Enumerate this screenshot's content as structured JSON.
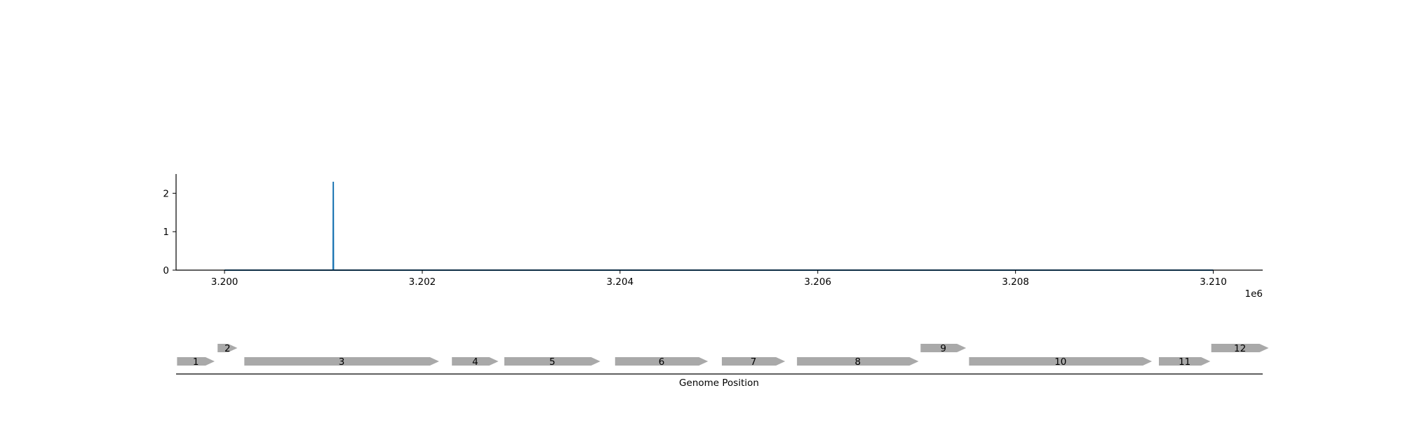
{
  "chart_data": [
    {
      "type": "line",
      "title": "",
      "xlabel": "",
      "ylabel": "",
      "x_offset_label": "1e6",
      "xlim": [
        3199510,
        3210500
      ],
      "ylim": [
        0,
        2.5
      ],
      "x_ticks": [
        3200000,
        3202000,
        3204000,
        3206000,
        3208000,
        3210000
      ],
      "x_tick_labels": [
        "3.200",
        "3.202",
        "3.204",
        "3.206",
        "3.208",
        "3.210"
      ],
      "y_ticks": [
        0,
        1,
        2
      ],
      "y_tick_labels": [
        "0",
        "1",
        "2"
      ],
      "grid": false,
      "legend": "none",
      "series_color": "#1f77b4",
      "series": [
        {
          "points": [
            [
              3200000,
              0
            ],
            [
              3201098,
              0
            ],
            [
              3201100,
              2.3
            ],
            [
              3201102,
              0
            ],
            [
              3210000,
              0
            ]
          ]
        }
      ]
    },
    {
      "type": "gene-map",
      "xlabel": "Genome Position",
      "feature_color": "#a9a9a9",
      "features": [
        {
          "label": "1",
          "start": 3199520,
          "end": 3199900,
          "row": 0
        },
        {
          "label": "2",
          "start": 3199930,
          "end": 3200130,
          "row": 1
        },
        {
          "label": "3",
          "start": 3200200,
          "end": 3202170,
          "row": 0
        },
        {
          "label": "4",
          "start": 3202300,
          "end": 3202770,
          "row": 0
        },
        {
          "label": "5",
          "start": 3202830,
          "end": 3203800,
          "row": 0
        },
        {
          "label": "6",
          "start": 3203950,
          "end": 3204890,
          "row": 0
        },
        {
          "label": "7",
          "start": 3205030,
          "end": 3205670,
          "row": 0
        },
        {
          "label": "8",
          "start": 3205790,
          "end": 3207020,
          "row": 0
        },
        {
          "label": "9",
          "start": 3207040,
          "end": 3207500,
          "row": 1
        },
        {
          "label": "10",
          "start": 3207530,
          "end": 3209380,
          "row": 0
        },
        {
          "label": "11",
          "start": 3209450,
          "end": 3209970,
          "row": 0
        },
        {
          "label": "12",
          "start": 3209980,
          "end": 3210560,
          "row": 1
        }
      ]
    }
  ]
}
